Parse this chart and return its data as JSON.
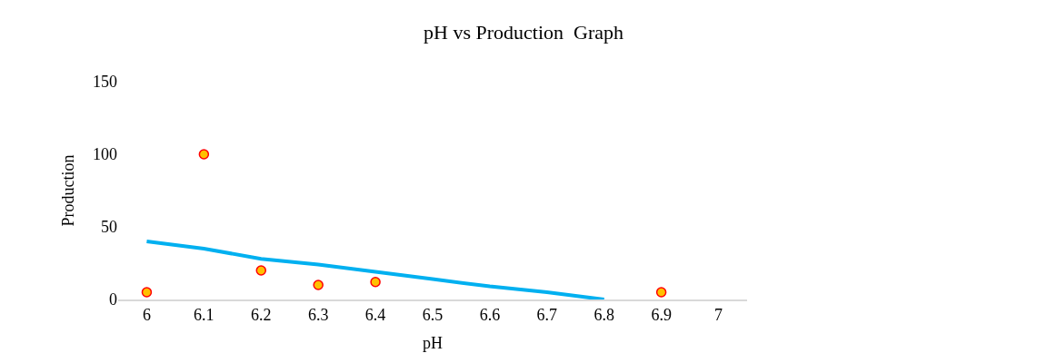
{
  "chart_data": {
    "type": "scatter",
    "title": "pH vs Production  Graph",
    "xlabel": "pH",
    "ylabel": "Production",
    "categories": [
      "6",
      "6.1",
      "6.2",
      "6.3",
      "6.4",
      "6.5",
      "6.6",
      "6.7",
      "6.8",
      "6.9",
      "7"
    ],
    "ylim": [
      0,
      150
    ],
    "yticks": [
      0,
      50,
      100,
      150
    ],
    "legend": false,
    "series": [
      {
        "type": "line",
        "color": "#00b0f0",
        "marker": "none",
        "line_style": "solid",
        "values": [
          40,
          35,
          28,
          24,
          19,
          14,
          9,
          5,
          0,
          null,
          null
        ]
      },
      {
        "color": "#ffc000",
        "marker": "circle",
        "values": [
          5,
          100,
          20,
          10,
          12,
          null,
          null,
          null,
          null,
          5,
          null
        ]
      }
    ]
  }
}
